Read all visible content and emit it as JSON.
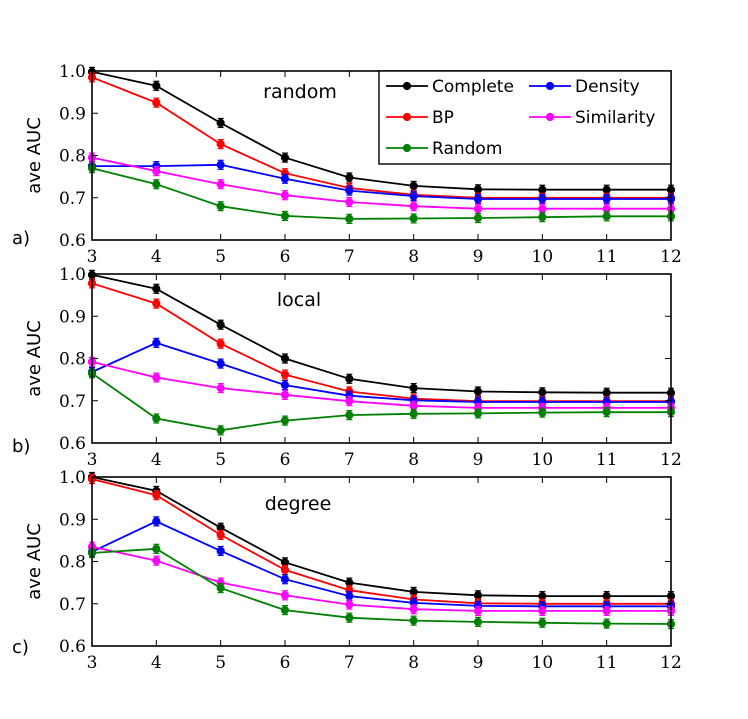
{
  "figure": {
    "legend": [
      {
        "name": "Complete",
        "color": "#000000"
      },
      {
        "name": "Density",
        "color": "#0000ff"
      },
      {
        "name": "BP",
        "color": "#ff0000"
      },
      {
        "name": "Similarity",
        "color": "#ff00ff"
      },
      {
        "name": "Random",
        "color": "#008000"
      }
    ]
  },
  "chart_data": [
    {
      "type": "line",
      "panel_label": "a)",
      "annotation": "random",
      "ylabel": "ave AUC",
      "xlabel": "",
      "x": [
        3,
        4,
        5,
        6,
        7,
        8,
        9,
        10,
        11,
        12
      ],
      "x_tick_labels": [
        "3",
        "4",
        "5",
        "6",
        "7",
        "8",
        "9",
        "10",
        "11",
        "12"
      ],
      "xlim": [
        3,
        12
      ],
      "ylim": [
        0.6,
        1.0
      ],
      "y_ticks": [
        0.6,
        0.7,
        0.8,
        0.9,
        1.0
      ],
      "y_tick_labels": [
        "0.6",
        "0.7",
        "0.8",
        "0.9",
        "1.0"
      ],
      "series": [
        {
          "name": "Complete",
          "color": "#000000",
          "values": [
            0.998,
            0.965,
            0.877,
            0.795,
            0.748,
            0.728,
            0.72,
            0.719,
            0.719,
            0.719
          ]
        },
        {
          "name": "BP",
          "color": "#ff0000",
          "values": [
            0.985,
            0.925,
            0.827,
            0.758,
            0.723,
            0.707,
            0.7,
            0.7,
            0.7,
            0.7
          ]
        },
        {
          "name": "Density",
          "color": "#0000ff",
          "values": [
            0.775,
            0.775,
            0.778,
            0.745,
            0.717,
            0.704,
            0.697,
            0.697,
            0.697,
            0.697
          ]
        },
        {
          "name": "Similarity",
          "color": "#ff00ff",
          "values": [
            0.795,
            0.763,
            0.732,
            0.706,
            0.69,
            0.68,
            0.674,
            0.674,
            0.674,
            0.674
          ]
        },
        {
          "name": "Random",
          "color": "#008000",
          "values": [
            0.77,
            0.732,
            0.68,
            0.657,
            0.65,
            0.651,
            0.652,
            0.654,
            0.656,
            0.656
          ]
        }
      ]
    },
    {
      "type": "line",
      "panel_label": "b)",
      "annotation": "local",
      "ylabel": "ave AUC",
      "xlabel": "",
      "x": [
        3,
        4,
        5,
        6,
        7,
        8,
        9,
        10,
        11,
        12
      ],
      "x_tick_labels": [
        "3",
        "4",
        "5",
        "6",
        "7",
        "8",
        "9",
        "10",
        "11",
        "12"
      ],
      "xlim": [
        3,
        12
      ],
      "ylim": [
        0.6,
        1.0
      ],
      "y_ticks": [
        0.6,
        0.7,
        0.8,
        0.9,
        1.0
      ],
      "y_tick_labels": [
        "0.6",
        "0.7",
        "0.8",
        "0.9",
        "1.0"
      ],
      "series": [
        {
          "name": "Complete",
          "color": "#000000",
          "values": [
            0.998,
            0.965,
            0.88,
            0.8,
            0.752,
            0.73,
            0.722,
            0.72,
            0.719,
            0.719
          ]
        },
        {
          "name": "BP",
          "color": "#ff0000",
          "values": [
            0.978,
            0.93,
            0.835,
            0.762,
            0.722,
            0.705,
            0.699,
            0.699,
            0.699,
            0.699
          ]
        },
        {
          "name": "Density",
          "color": "#0000ff",
          "values": [
            0.768,
            0.837,
            0.788,
            0.737,
            0.712,
            0.701,
            0.697,
            0.697,
            0.697,
            0.697
          ]
        },
        {
          "name": "Similarity",
          "color": "#ff00ff",
          "values": [
            0.792,
            0.755,
            0.73,
            0.714,
            0.699,
            0.688,
            0.683,
            0.683,
            0.683,
            0.683
          ]
        },
        {
          "name": "Random",
          "color": "#008000",
          "values": [
            0.765,
            0.658,
            0.63,
            0.653,
            0.666,
            0.669,
            0.67,
            0.672,
            0.673,
            0.673
          ]
        }
      ]
    },
    {
      "type": "line",
      "panel_label": "c)",
      "annotation": "degree",
      "ylabel": "ave AUC",
      "xlabel": "",
      "x": [
        3,
        4,
        5,
        6,
        7,
        8,
        9,
        10,
        11,
        12
      ],
      "x_tick_labels": [
        "3",
        "4",
        "5",
        "6",
        "7",
        "8",
        "9",
        "10",
        "11",
        "12"
      ],
      "xlim": [
        3,
        12
      ],
      "ylim": [
        0.6,
        1.0
      ],
      "y_ticks": [
        0.6,
        0.7,
        0.8,
        0.9,
        1.0
      ],
      "y_tick_labels": [
        "0.6",
        "0.7",
        "0.8",
        "0.9",
        "1.0"
      ],
      "series": [
        {
          "name": "Complete",
          "color": "#000000",
          "values": [
            1.0,
            0.967,
            0.88,
            0.798,
            0.75,
            0.728,
            0.72,
            0.718,
            0.718,
            0.718
          ]
        },
        {
          "name": "BP",
          "color": "#ff0000",
          "values": [
            0.995,
            0.957,
            0.863,
            0.78,
            0.732,
            0.71,
            0.701,
            0.7,
            0.7,
            0.7
          ]
        },
        {
          "name": "Density",
          "color": "#0000ff",
          "values": [
            0.823,
            0.895,
            0.825,
            0.758,
            0.718,
            0.702,
            0.695,
            0.694,
            0.694,
            0.694
          ]
        },
        {
          "name": "Similarity",
          "color": "#ff00ff",
          "values": [
            0.835,
            0.802,
            0.75,
            0.72,
            0.698,
            0.687,
            0.683,
            0.683,
            0.683,
            0.683
          ]
        },
        {
          "name": "Random",
          "color": "#008000",
          "values": [
            0.82,
            0.83,
            0.737,
            0.685,
            0.667,
            0.66,
            0.657,
            0.655,
            0.653,
            0.652
          ]
        }
      ]
    }
  ]
}
